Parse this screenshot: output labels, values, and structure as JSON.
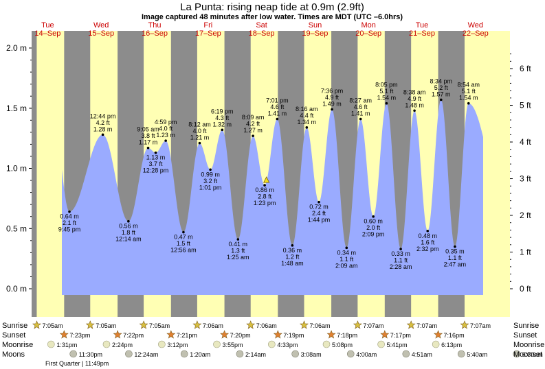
{
  "title": "La Punta: rising  neap tide at 0.9m (2.9ft)",
  "subtitle": "Image captured 48 minutes after low water. Times are MDT (UTC –6.0hrs)",
  "days": [
    {
      "dow": "Tue",
      "date": "14–Sep"
    },
    {
      "dow": "Wed",
      "date": "15–Sep"
    },
    {
      "dow": "Thu",
      "date": "16–Sep"
    },
    {
      "dow": "Fri",
      "date": "17–Sep"
    },
    {
      "dow": "Sat",
      "date": "18–Sep"
    },
    {
      "dow": "Sun",
      "date": "19–Sep"
    },
    {
      "dow": "Mon",
      "date": "20–Sep"
    },
    {
      "dow": "Tue",
      "date": "21–Sep"
    },
    {
      "dow": "Wed",
      "date": "22–Sep"
    }
  ],
  "chart_data": {
    "type": "area",
    "title": "La Punta: rising  neap tide at 0.9m (2.9ft)",
    "xlabel": "",
    "ylabel": "",
    "y_left_unit": "m",
    "y_right_unit": "ft",
    "ylim_m": [
      -0.1,
      2.05
    ],
    "y_left_ticks": [
      "2.0 m",
      "1.5 m",
      "1.0 m",
      "0.5 m",
      "0.0 m"
    ],
    "y_left_values": [
      2.0,
      1.5,
      1.0,
      0.5,
      0.0
    ],
    "y_right_ticks": [
      "6 ft",
      "5 ft",
      "4 ft",
      "3 ft",
      "2 ft",
      "1 ft",
      "0 ft"
    ],
    "y_right_values": [
      6,
      5,
      4,
      3,
      2,
      1,
      0
    ],
    "current_level_m": 0.9,
    "current_time": "Sat 18–Sep 2:11 pm",
    "series": [
      {
        "name": "",
        "color": "#9aabff",
        "points": [
          {
            "day": 0,
            "time": "9:45 pm",
            "m": "0.64 m",
            "ft": "2.1 ft",
            "type": "low",
            "v": 0.64
          },
          {
            "day": 1,
            "time": "12:44 pm",
            "m": "1.28 m",
            "ft": "4.2 ft",
            "type": "high",
            "v": 1.28
          },
          {
            "day": 2,
            "time": "12:14 am",
            "m": "0.56 m",
            "ft": "1.8 ft",
            "type": "low",
            "v": 0.56
          },
          {
            "day": 2,
            "time": "9:05 am",
            "m": "1.17 m",
            "ft": "3.8 ft",
            "type": "high",
            "v": 1.17
          },
          {
            "day": 2,
            "time": "12:28 pm",
            "m": "1.13 m",
            "ft": "3.7 ft",
            "type": "low",
            "v": 1.13
          },
          {
            "day": 2,
            "time": "4:59 pm",
            "m": "1.23 m",
            "ft": "4.0 ft",
            "type": "high",
            "v": 1.23
          },
          {
            "day": 3,
            "time": "12:56 am",
            "m": "0.47 m",
            "ft": "1.5 ft",
            "type": "low",
            "v": 0.47
          },
          {
            "day": 3,
            "time": "8:12 am",
            "m": "1.21 m",
            "ft": "4.0 ft",
            "type": "high",
            "v": 1.21
          },
          {
            "day": 3,
            "time": "1:01 pm",
            "m": "0.99 m",
            "ft": "3.2 ft",
            "type": "low",
            "v": 0.99
          },
          {
            "day": 3,
            "time": "6:19 pm",
            "m": "1.32 m",
            "ft": "4.3 ft",
            "type": "high",
            "v": 1.32
          },
          {
            "day": 4,
            "time": "1:25 am",
            "m": "0.41 m",
            "ft": "1.3 ft",
            "type": "low",
            "v": 0.41
          },
          {
            "day": 4,
            "time": "8:09 am",
            "m": "1.27 m",
            "ft": "4.2 ft",
            "type": "high",
            "v": 1.27
          },
          {
            "day": 4,
            "time": "1:23 pm",
            "m": "0.86 m",
            "ft": "2.8 ft",
            "type": "low",
            "v": 0.86
          },
          {
            "day": 4,
            "time": "7:01 pm",
            "m": "1.41 m",
            "ft": "4.6 ft",
            "type": "high",
            "v": 1.41
          },
          {
            "day": 5,
            "time": "1:48 am",
            "m": "0.36 m",
            "ft": "1.2 ft",
            "type": "low",
            "v": 0.36
          },
          {
            "day": 5,
            "time": "8:16 am",
            "m": "1.34 m",
            "ft": "4.4 ft",
            "type": "high",
            "v": 1.34
          },
          {
            "day": 5,
            "time": "1:44 pm",
            "m": "0.72 m",
            "ft": "2.4 ft",
            "type": "low",
            "v": 0.72
          },
          {
            "day": 5,
            "time": "7:36 pm",
            "m": "1.49 m",
            "ft": "4.9 ft",
            "type": "high",
            "v": 1.49
          },
          {
            "day": 6,
            "time": "2:09 am",
            "m": "0.34 m",
            "ft": "1.1 ft",
            "type": "low",
            "v": 0.34
          },
          {
            "day": 6,
            "time": "8:27 am",
            "m": "1.41 m",
            "ft": "4.6 ft",
            "type": "high",
            "v": 1.41
          },
          {
            "day": 6,
            "time": "2:09 pm",
            "m": "0.60 m",
            "ft": "2.0 ft",
            "type": "low",
            "v": 0.6
          },
          {
            "day": 6,
            "time": "8:05 pm",
            "m": "1.54 m",
            "ft": "5.1 ft",
            "type": "high",
            "v": 1.54
          },
          {
            "day": 7,
            "time": "2:28 am",
            "m": "0.33 m",
            "ft": "1.1 ft",
            "type": "low",
            "v": 0.33
          },
          {
            "day": 7,
            "time": "8:38 am",
            "m": "1.48 m",
            "ft": "4.9 ft",
            "type": "high",
            "v": 1.48
          },
          {
            "day": 7,
            "time": "2:32 pm",
            "m": "0.48 m",
            "ft": "1.6 ft",
            "type": "low",
            "v": 0.48
          },
          {
            "day": 7,
            "time": "8:34 pm",
            "m": "1.57 m",
            "ft": "5.2 ft",
            "type": "high",
            "v": 1.57
          },
          {
            "day": 8,
            "time": "2:47 am",
            "m": "0.35 m",
            "ft": "1.1 ft",
            "type": "low",
            "v": 0.35
          },
          {
            "day": 8,
            "time": "8:54 am",
            "m": "1.54 m",
            "ft": "5.1 ft",
            "type": "high",
            "v": 1.54
          }
        ]
      }
    ]
  },
  "astro": {
    "row_labels": {
      "sunrise": "Sunrise",
      "sunset": "Sunset",
      "moonrise": "Moonrise",
      "moonset": "Moonset",
      "moonset_left": "Moons"
    },
    "sunrise": [
      "7:05am",
      "7:05am",
      "7:05am",
      "7:06am",
      "7:06am",
      "7:06am",
      "7:07am",
      "7:07am",
      "7:07am"
    ],
    "sunset": [
      "7:23pm",
      "7:22pm",
      "7:21pm",
      "7:20pm",
      "7:19pm",
      "7:18pm",
      "7:17pm",
      "7:16pm"
    ],
    "moonrise": [
      "1:31pm",
      "2:24pm",
      "3:12pm",
      "3:55pm",
      "4:33pm",
      "5:08pm",
      "5:41pm",
      "6:13pm"
    ],
    "moonset": [
      "11:30pm",
      "12:24am",
      "1:20am",
      "2:14am",
      "3:08am",
      "4:00am",
      "4:51am",
      "5:40am",
      "6:30am"
    ],
    "moon_phase": "First Quarter | 11:49pm"
  },
  "colors": {
    "night": "#8c8c8c",
    "day": "#ffffb4",
    "water": "#9aabff",
    "sun_star": "#d8c040",
    "sunset_star": "#e08030",
    "moon": "#e8e8c0",
    "moonset": "#c0c0b0",
    "day_label": "#cc0000"
  }
}
